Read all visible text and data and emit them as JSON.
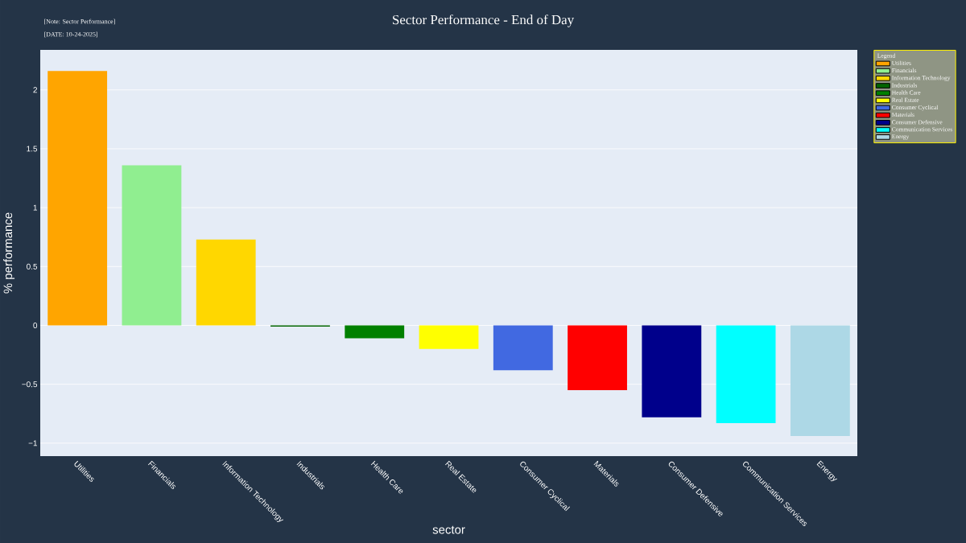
{
  "chart_data": {
    "type": "bar",
    "title": "Sector Performance - End of Day",
    "annotations": [
      "[Note: Sector Performance]",
      "[DATE: 10-24-2025]"
    ],
    "xlabel": "sector",
    "ylabel": "% performance",
    "legend_title": "Legend",
    "categories": [
      "Utilities",
      "Financials",
      "Information Technology",
      "Industrials",
      "Health Care",
      "Real Estate",
      "Consumer Cyclical",
      "Materials",
      "Consumer Defensive",
      "Communication Services",
      "Energy"
    ],
    "series": [
      {
        "name": "Utilities",
        "color": "#ffa500",
        "values": [
          2.16,
          null,
          null,
          null,
          null,
          null,
          null,
          null,
          null,
          null,
          null
        ]
      },
      {
        "name": "Financials",
        "color": "#90ee90",
        "values": [
          null,
          1.36,
          null,
          null,
          null,
          null,
          null,
          null,
          null,
          null,
          null
        ]
      },
      {
        "name": "Information Technology",
        "color": "#ffd700",
        "values": [
          null,
          null,
          0.73,
          null,
          null,
          null,
          null,
          null,
          null,
          null,
          null
        ]
      },
      {
        "name": "Industrials",
        "color": "#006400",
        "values": [
          null,
          null,
          null,
          -0.01,
          null,
          null,
          null,
          null,
          null,
          null,
          null
        ]
      },
      {
        "name": "Health Care",
        "color": "#008000",
        "values": [
          null,
          null,
          null,
          null,
          -0.11,
          null,
          null,
          null,
          null,
          null,
          null
        ]
      },
      {
        "name": "Real Estate",
        "color": "#ffff00",
        "values": [
          null,
          null,
          null,
          null,
          null,
          -0.2,
          null,
          null,
          null,
          null,
          null
        ]
      },
      {
        "name": "Consumer Cyclical",
        "color": "#4169e1",
        "values": [
          null,
          null,
          null,
          null,
          null,
          null,
          -0.38,
          null,
          null,
          null,
          null
        ]
      },
      {
        "name": "Materials",
        "color": "#ff0000",
        "values": [
          null,
          null,
          null,
          null,
          null,
          null,
          null,
          -0.55,
          null,
          null,
          null
        ]
      },
      {
        "name": "Consumer Defensive",
        "color": "#00008b",
        "values": [
          null,
          null,
          null,
          null,
          null,
          null,
          null,
          null,
          -0.78,
          null,
          null
        ]
      },
      {
        "name": "Communication Services",
        "color": "#00ffff",
        "values": [
          null,
          null,
          null,
          null,
          null,
          null,
          null,
          null,
          null,
          -0.83,
          null
        ]
      },
      {
        "name": "Energy",
        "color": "#add8e6",
        "values": [
          null,
          null,
          null,
          null,
          null,
          null,
          null,
          null,
          null,
          null,
          -0.94
        ]
      }
    ],
    "ylim": [
      -1.11,
      2.34
    ],
    "yticks": [
      {
        "value": -1,
        "label": "−1"
      },
      {
        "value": -0.5,
        "label": "−0.5"
      },
      0,
      0.5,
      1,
      1.5,
      2
    ],
    "grid": "y",
    "legend": "top right"
  }
}
